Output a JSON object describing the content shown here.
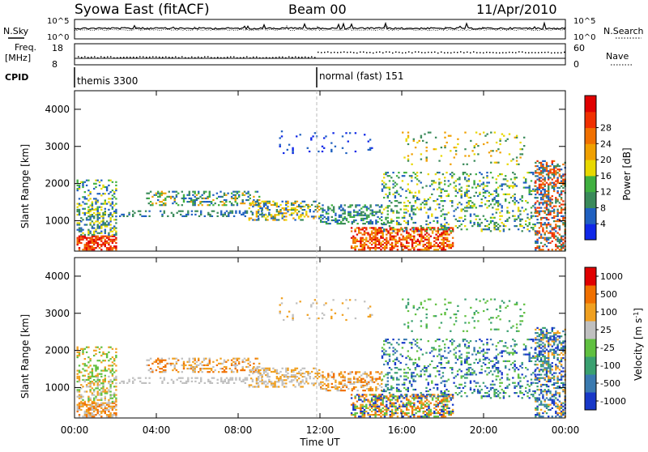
{
  "header": {
    "title": "Syowa East (fitACF)",
    "beam": "Beam 00",
    "date": "11/Apr/2010"
  },
  "noise_panel": {
    "left_label": "N.Sky",
    "left_ticks": [
      "10^5",
      "10^0"
    ],
    "right_label": "N.Search",
    "right_ticks": [
      "10^5",
      "10^0"
    ]
  },
  "freq_panel": {
    "left_label_1": "Freq.",
    "left_label_2": "[MHz]",
    "left_ticks": [
      "18",
      "8"
    ],
    "right_label": "Nave",
    "right_ticks": [
      "60",
      "0"
    ]
  },
  "cpid": {
    "label": "CPID",
    "modes": [
      {
        "text": "themis 3300",
        "start_hour": 0
      },
      {
        "text": "normal (fast) 151",
        "start_hour": 12
      }
    ]
  },
  "chart_data": [
    {
      "type": "heatmap",
      "name": "power",
      "ylabel": "Slant Range [km]",
      "ylim": [
        180,
        4500
      ],
      "y_ticks": [
        "1000",
        "2000",
        "3000",
        "4000"
      ],
      "xlim_hours": [
        0,
        24
      ],
      "colorbar": {
        "label": "Power [dB]",
        "range": [
          0,
          30
        ],
        "ticks": [
          "4",
          "8",
          "12",
          "16",
          "20",
          "24",
          "28"
        ],
        "colors": [
          "#1028e8",
          "#2060c0",
          "#3a8a5a",
          "#40b040",
          "#e8d800",
          "#f0a000",
          "#f07000",
          "#f03000",
          "#e00000"
        ]
      }
    },
    {
      "type": "heatmap",
      "name": "velocity",
      "ylabel": "Slant Range [km]",
      "ylim": [
        180,
        4500
      ],
      "y_ticks": [
        "1000",
        "2000",
        "3000",
        "4000"
      ],
      "xlim_hours": [
        0,
        24
      ],
      "colorbar": {
        "label": "Velocity [m s^-1]",
        "ticks": [
          "1000",
          "500",
          "100",
          "25",
          "-25",
          "-100",
          "-500",
          "-1000"
        ],
        "colors": [
          "#1838c8",
          "#3a7ab0",
          "#3aa070",
          "#60c040",
          "#c0c0c0",
          "#f0a020",
          "#f07000",
          "#e00000"
        ]
      }
    }
  ],
  "x_axis": {
    "ticks": [
      "00:00",
      "04:00",
      "08:00",
      "12:00",
      "16:00",
      "20:00",
      "00:00"
    ],
    "label": "Time UT"
  }
}
